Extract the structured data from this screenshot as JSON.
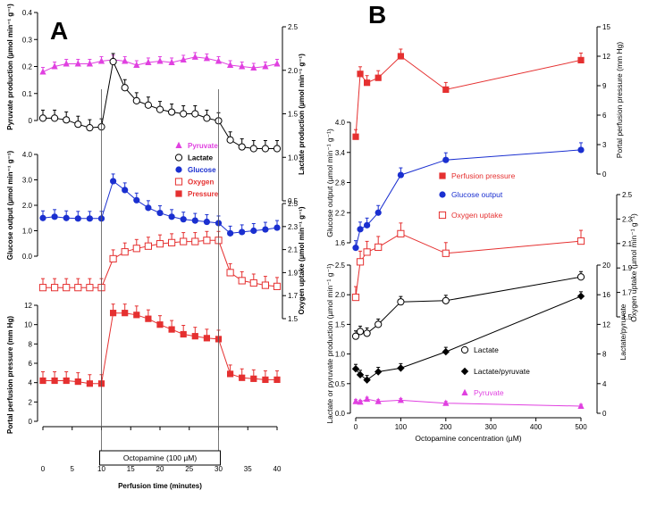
{
  "panel_a_label": "A",
  "panel_b_label": "B",
  "chart_data": [
    {
      "panel": "A",
      "type": "line",
      "x": [
        0,
        2,
        4,
        6,
        8,
        10,
        12,
        14,
        16,
        18,
        20,
        22,
        24,
        26,
        28,
        30,
        32,
        34,
        36,
        38,
        40
      ],
      "xlabel": "Perfusion time (minutes)",
      "xlim": [
        0,
        40
      ],
      "xticks": [
        0,
        5,
        10,
        15,
        20,
        25,
        30,
        35,
        40
      ],
      "treatment_label": "Octopamine (100 µM)",
      "treatment_range": [
        10,
        30
      ],
      "subplots": [
        {
          "id": "pyr_lac",
          "ylabel_left": "Pyruvate production (µmol min⁻¹ g⁻¹)",
          "ylim_left": [
            0,
            0.4
          ],
          "yticks_left": [
            0,
            0.1,
            0.2,
            0.3,
            0.4
          ],
          "ylabel_right": "Lactate production (µmol min⁻¹ g⁻¹)",
          "ylim_right": [
            0.5,
            2.5
          ],
          "yticks_right": [
            0.5,
            1.0,
            1.5,
            2.0,
            2.5
          ],
          "series": [
            {
              "name": "Pyruvate",
              "color": "#e040e0",
              "marker": "triangle",
              "axis": "left",
              "values": [
                0.18,
                0.2,
                0.21,
                0.21,
                0.21,
                0.22,
                0.225,
                0.22,
                0.205,
                0.215,
                0.22,
                0.215,
                0.225,
                0.235,
                0.23,
                0.22,
                0.205,
                0.2,
                0.195,
                0.2,
                0.21
              ]
            },
            {
              "name": "Lactate",
              "color": "#000000",
              "marker": "circle-open",
              "axis": "right",
              "values": [
                1.45,
                1.45,
                1.43,
                1.38,
                1.34,
                1.35,
                2.1,
                1.8,
                1.65,
                1.6,
                1.55,
                1.52,
                1.5,
                1.5,
                1.45,
                1.42,
                1.2,
                1.12,
                1.1,
                1.1,
                1.1
              ]
            }
          ]
        },
        {
          "id": "glucose",
          "ylabel_left": "Glucose output (µmol min⁻¹ g⁻¹)",
          "ylim_left": [
            0,
            4.0
          ],
          "yticks_left": [
            0,
            1.0,
            2.0,
            3.0,
            4.0
          ],
          "series": [
            {
              "name": "Glucose",
              "color": "#1a2fd0",
              "marker": "circle",
              "axis": "left",
              "values": [
                1.5,
                1.55,
                1.5,
                1.48,
                1.48,
                1.48,
                2.95,
                2.6,
                2.2,
                1.9,
                1.7,
                1.55,
                1.45,
                1.4,
                1.35,
                1.3,
                0.9,
                0.95,
                1.0,
                1.05,
                1.12
              ]
            }
          ]
        },
        {
          "id": "oxygen",
          "ylabel_right": "Oxygen uptake (µmol min⁻¹ g⁻¹)",
          "ylim_right": [
            1.5,
            2.5
          ],
          "yticks_right": [
            1.5,
            1.7,
            1.9,
            2.1,
            2.3,
            2.5
          ],
          "series": [
            {
              "name": "Oxygen",
              "color": "#e53030",
              "marker": "square-open",
              "axis": "right",
              "values": [
                1.77,
                1.77,
                1.77,
                1.77,
                1.77,
                1.77,
                2.02,
                2.08,
                2.11,
                2.13,
                2.15,
                2.16,
                2.17,
                2.17,
                2.18,
                2.18,
                1.9,
                1.83,
                1.81,
                1.79,
                1.78
              ]
            }
          ]
        },
        {
          "id": "pressure",
          "ylabel_left": "Portal perfusion pressure (mm Hg)",
          "ylim_left": [
            0,
            12
          ],
          "yticks_left": [
            0,
            2,
            4,
            6,
            8,
            10,
            12
          ],
          "series": [
            {
              "name": "Pressure",
              "color": "#e53030",
              "marker": "square",
              "axis": "left",
              "values": [
                4.2,
                4.2,
                4.2,
                4.1,
                3.9,
                3.9,
                11.2,
                11.2,
                11.0,
                10.6,
                10.0,
                9.5,
                9.0,
                8.8,
                8.6,
                8.5,
                4.9,
                4.5,
                4.4,
                4.3,
                4.3
              ]
            }
          ]
        }
      ],
      "legend": [
        {
          "name": "Pyruvate",
          "color": "#e040e0",
          "marker": "triangle"
        },
        {
          "name": "Lactate",
          "color": "#000000",
          "marker": "circle-open"
        },
        {
          "name": "Glucose",
          "color": "#1a2fd0",
          "marker": "circle"
        },
        {
          "name": "Oxygen",
          "color": "#e53030",
          "marker": "square-open"
        },
        {
          "name": "Pressure",
          "color": "#e53030",
          "marker": "square"
        }
      ]
    },
    {
      "panel": "B",
      "type": "line",
      "x": [
        0,
        10,
        25,
        50,
        100,
        200,
        500
      ],
      "xlabel": "Octopamine concentration (µM)",
      "xlim": [
        0,
        500
      ],
      "xticks": [
        0,
        100,
        200,
        300,
        400,
        500
      ],
      "subplots": [
        {
          "id": "pressure_b",
          "ylabel_right": "Portal perfusion pressure (mm Hg)",
          "ylim_right": [
            0,
            15
          ],
          "yticks_right": [
            0,
            3,
            6,
            9,
            12,
            15
          ],
          "series": [
            {
              "name": "Perfusion pressure",
              "color": "#e53030",
              "marker": "square",
              "values": [
                3.8,
                10.2,
                9.3,
                9.8,
                12.0,
                8.6,
                11.6
              ]
            }
          ]
        },
        {
          "id": "glucose_b",
          "ylabel_left": "Glucose output (µmol min⁻¹ g⁻¹)",
          "ylim_left": [
            1.6,
            4.0
          ],
          "yticks_left": [
            1.6,
            2.2,
            2.8,
            3.4,
            4.0
          ],
          "series": [
            {
              "name": "Glucose output",
              "color": "#1a2fd0",
              "marker": "circle",
              "values": [
                1.5,
                1.87,
                1.95,
                2.2,
                2.95,
                3.25,
                3.45
              ]
            }
          ]
        },
        {
          "id": "oxygen_b",
          "ylabel_right": "Oxygen uptake (µmol min⁻¹ g⁻¹)",
          "ylim_right": [
            1.5,
            2.5
          ],
          "yticks_right": [
            1.5,
            1.7,
            1.9,
            2.1,
            2.3,
            2.5
          ],
          "series": [
            {
              "name": "Oxygen uptake",
              "color": "#e53030",
              "marker": "square-open",
              "values": [
                1.66,
                1.95,
                2.03,
                2.07,
                2.18,
                2.02,
                2.12
              ]
            }
          ]
        },
        {
          "id": "lactate_b",
          "ylabel_left": "Lactate or pyruvate production (µmol min⁻¹ g⁻¹)",
          "ylim_left": [
            0,
            2.5
          ],
          "yticks_left": [
            0,
            0.5,
            1.0,
            1.5,
            2.0,
            2.5
          ],
          "ylabel_right": "Lactate/pyruvate",
          "ylim_right": [
            0,
            20
          ],
          "yticks_right": [
            0,
            4,
            8,
            12,
            16,
            20
          ],
          "series": [
            {
              "name": "Lactate",
              "color": "#000000",
              "marker": "circle-open",
              "axis": "left",
              "values": [
                1.3,
                1.38,
                1.35,
                1.5,
                1.88,
                1.9,
                2.3
              ]
            },
            {
              "name": "Lactate/pyruvate",
              "color": "#000000",
              "marker": "diamond",
              "axis": "right",
              "values": [
                6.0,
                5.2,
                4.5,
                5.6,
                6.1,
                8.3,
                15.8
              ]
            },
            {
              "name": "Pyruvate",
              "color": "#e040e0",
              "marker": "triangle",
              "axis": "left",
              "values": [
                0.2,
                0.19,
                0.24,
                0.2,
                0.22,
                0.17,
                0.12
              ]
            }
          ]
        }
      ],
      "legend": [
        {
          "name": "Perfusion pressure",
          "color": "#e53030",
          "marker": "square"
        },
        {
          "name": "Glucose output",
          "color": "#1a2fd0",
          "marker": "circle"
        },
        {
          "name": "Oxygen uptake",
          "color": "#e53030",
          "marker": "square-open"
        },
        {
          "name": "Lactate",
          "color": "#000000",
          "marker": "circle-open"
        },
        {
          "name": "Lactate/pyruvate",
          "color": "#000000",
          "marker": "diamond"
        },
        {
          "name": "Pyruvate",
          "color": "#e040e0",
          "marker": "triangle"
        }
      ]
    }
  ]
}
